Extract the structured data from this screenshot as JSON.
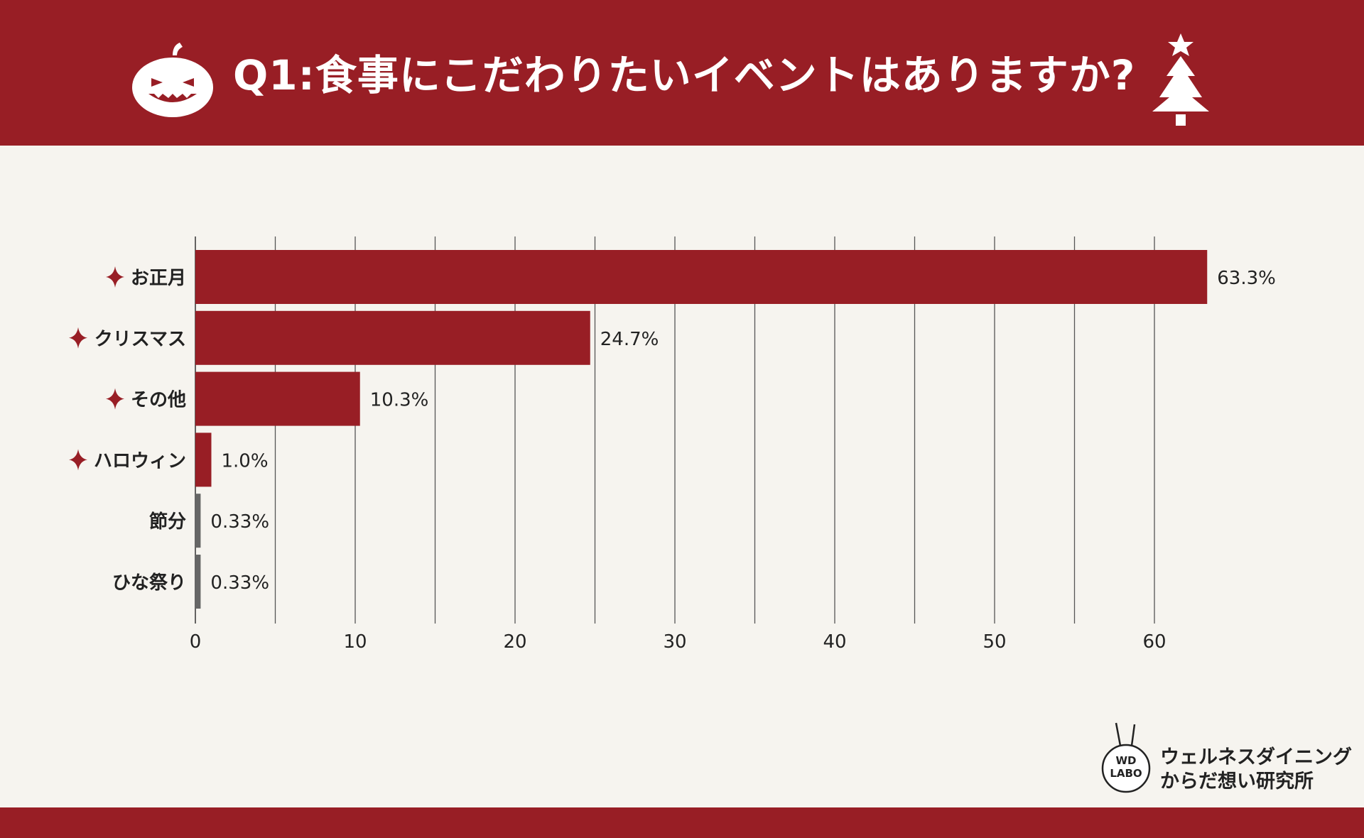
{
  "header": {
    "title": "Q1:食事にこだわりたいイベントはありますか?",
    "icon_left": "pumpkin-icon",
    "icon_right": "christmas-tree-icon"
  },
  "colors": {
    "brand_red": "#981e25",
    "bar_highlight": "#981e25",
    "bar_minor": "#666666",
    "background": "#f6f4ef"
  },
  "chart_data": {
    "type": "bar",
    "orientation": "horizontal",
    "categories": [
      "お正月",
      "クリスマス",
      "その他",
      "ハロウィン",
      "節分",
      "ひな祭り"
    ],
    "values": [
      63.3,
      24.7,
      10.3,
      1.0,
      0.33,
      0.33
    ],
    "value_labels": [
      "63.3%",
      "24.7%",
      "10.3%",
      "1.0%",
      "0.33%",
      "0.33%"
    ],
    "highlighted": [
      true,
      true,
      true,
      true,
      false,
      false
    ],
    "bar_colors": [
      "#981e25",
      "#981e25",
      "#981e25",
      "#981e25",
      "#666666",
      "#666666"
    ],
    "xlim": [
      0,
      65
    ],
    "x_ticks": [
      0,
      10,
      20,
      30,
      40,
      50,
      60
    ],
    "minor_gridlines": [
      5,
      15,
      25,
      35,
      45,
      55
    ],
    "grid": true,
    "xlabel": "",
    "ylabel": "",
    "bullet_icon": "sparkle-icon"
  },
  "footer": {
    "logo_badge_line1": "WD",
    "logo_badge_line2": "LABO",
    "brand_line1": "ウェルネスダイニング",
    "brand_line2": "からだ想い研究所"
  }
}
